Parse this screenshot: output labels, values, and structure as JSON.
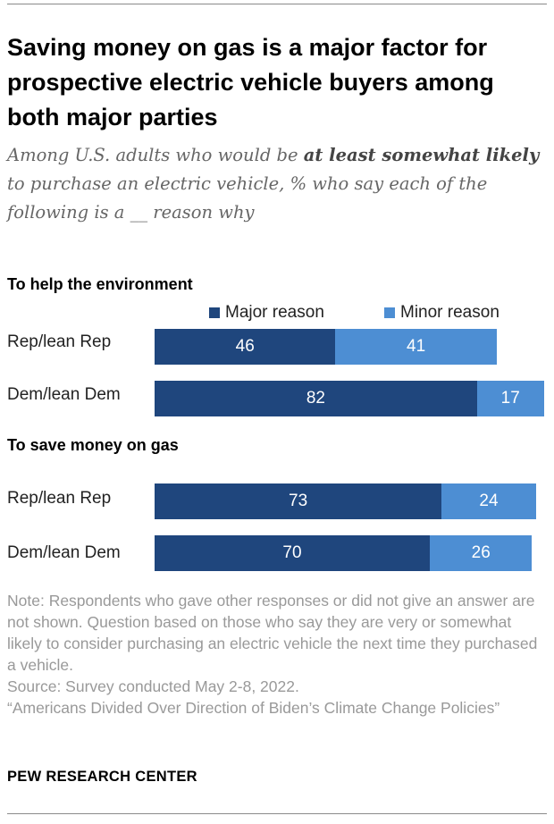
{
  "title": "Saving money on gas is a major factor for prospective electric vehicle buyers among both major parties",
  "subtitle": {
    "before": "Among U.S. adults who would be ",
    "bold": "at least somewhat likely",
    "after": " to purchase an electric vehicle, % who say each of the following is a __ reason why"
  },
  "legend": {
    "major": "Major reason",
    "minor": "Minor reason"
  },
  "colors": {
    "major": "#1f467d",
    "minor": "#4d8ed3"
  },
  "chart_data": {
    "type": "bar",
    "orientation": "horizontal",
    "stacked": true,
    "xlim": [
      0,
      100
    ],
    "series_names": [
      "Major reason",
      "Minor reason"
    ],
    "panels": [
      {
        "title": "To help the environment",
        "rows": [
          {
            "label": "Rep/lean Rep",
            "major": 46,
            "minor": 41
          },
          {
            "label": "Dem/lean Dem",
            "major": 82,
            "minor": 17
          }
        ]
      },
      {
        "title": "To save money on gas",
        "rows": [
          {
            "label": "Rep/lean Rep",
            "major": 73,
            "minor": 24
          },
          {
            "label": "Dem/lean Dem",
            "major": 70,
            "minor": 26
          }
        ]
      }
    ]
  },
  "note": {
    "text": "Note: Respondents who gave other responses or did not give an answer are not shown. Question based on those who say they are very or somewhat likely to consider purchasing an electric vehicle the next time they purchased a vehicle.",
    "source": "Source: Survey conducted May 2-8, 2022.",
    "report": "“Americans Divided Over Direction of Biden’s Climate Change Policies”"
  },
  "brand": "PEW RESEARCH CENTER"
}
